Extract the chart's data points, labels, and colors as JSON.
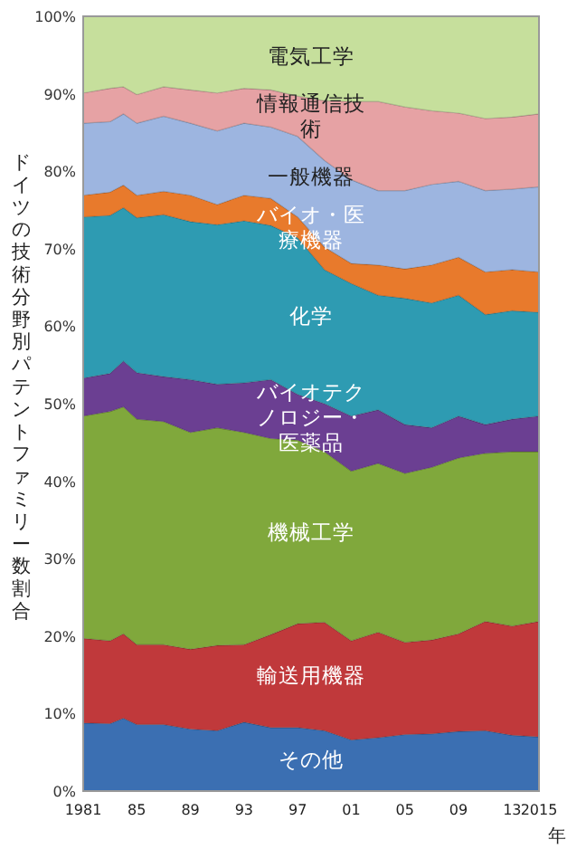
{
  "chart_data": {
    "type": "area",
    "stacked": true,
    "ylabel": "ドイツの技術分野別パテントファミリー数割合",
    "xlabel": "年",
    "x": [
      1981,
      1983,
      1984,
      1985,
      1987,
      1989,
      1991,
      1993,
      1995,
      1997,
      1999,
      2001,
      2003,
      2005,
      2007,
      2009,
      2011,
      2013,
      2015
    ],
    "xlim": [
      1981,
      2015
    ],
    "xticks": [
      1981,
      {
        "value": 1985,
        "label": "85"
      },
      {
        "value": 1989,
        "label": "89"
      },
      {
        "value": 1993,
        "label": "93"
      },
      {
        "value": 1997,
        "label": "97"
      },
      {
        "value": 2001,
        "label": "01"
      },
      {
        "value": 2005,
        "label": "05"
      },
      {
        "value": 2009,
        "label": "09"
      },
      {
        "value": 2013,
        "label": "13"
      },
      2015
    ],
    "ylim": [
      0,
      100
    ],
    "yticks": [
      {
        "value": 0,
        "label": "0%"
      },
      {
        "value": 10,
        "label": "10%"
      },
      {
        "value": 20,
        "label": "20%"
      },
      {
        "value": 30,
        "label": "30%"
      },
      {
        "value": 40,
        "label": "40%"
      },
      {
        "value": 50,
        "label": "50%"
      },
      {
        "value": 60,
        "label": "60%"
      },
      {
        "value": 70,
        "label": "70%"
      },
      {
        "value": 80,
        "label": "80%"
      },
      {
        "value": 90,
        "label": "90%"
      },
      {
        "value": 100,
        "label": "100%"
      }
    ],
    "grid": false,
    "series": [
      {
        "name": "その他",
        "color": "#3b6fb2",
        "values": [
          8.8,
          8.7,
          9.4,
          8.6,
          8.6,
          8.0,
          7.8,
          8.9,
          8.2,
          8.2,
          7.8,
          6.6,
          6.9,
          7.3,
          7.4,
          7.7,
          7.8,
          7.2,
          7.0
        ]
      },
      {
        "name": "輸送用機器",
        "color": "#c0393b",
        "values": [
          10.9,
          10.7,
          10.9,
          10.3,
          10.3,
          10.3,
          11.0,
          10.0,
          12.0,
          13.4,
          14.0,
          12.8,
          13.6,
          11.9,
          12.1,
          12.6,
          14.1,
          14.1,
          14.9
        ]
      },
      {
        "name": "機械工学",
        "color": "#80a83c",
        "values": [
          28.7,
          29.6,
          29.3,
          29.1,
          28.8,
          28.0,
          28.1,
          27.4,
          25.3,
          23.7,
          22.0,
          21.9,
          21.8,
          21.8,
          22.3,
          22.7,
          21.7,
          22.5,
          21.9
        ]
      },
      {
        "name": "バイオテクノロジー・医薬品",
        "color": "#6b3f92",
        "values": [
          4.9,
          4.9,
          5.9,
          6.0,
          5.8,
          6.8,
          5.6,
          6.4,
          7.6,
          5.9,
          6.2,
          7.1,
          6.9,
          6.3,
          5.1,
          5.4,
          3.7,
          4.2,
          4.6
        ]
      },
      {
        "name": "化学",
        "color": "#2e9bb2",
        "values": [
          20.8,
          20.4,
          19.8,
          20.0,
          20.9,
          20.4,
          20.6,
          20.9,
          19.9,
          20.2,
          17.3,
          17.1,
          14.8,
          16.3,
          16.1,
          15.6,
          14.2,
          14.0,
          13.4
        ]
      },
      {
        "name": "バイオ・医療機器",
        "color": "#e87a2c",
        "values": [
          2.8,
          3.0,
          2.9,
          2.9,
          3.0,
          3.4,
          2.6,
          3.3,
          3.5,
          2.7,
          2.9,
          2.6,
          3.9,
          3.8,
          4.9,
          4.9,
          5.5,
          5.3,
          5.2
        ]
      },
      {
        "name": "一般機器",
        "color": "#9db5e0",
        "values": [
          9.3,
          9.1,
          9.2,
          9.3,
          9.7,
          9.3,
          9.5,
          9.3,
          9.2,
          10.4,
          11.2,
          10.8,
          9.6,
          10.1,
          10.4,
          9.8,
          10.5,
          10.4,
          11.0
        ]
      },
      {
        "name": "情報通信技術",
        "color": "#e6a2a4",
        "values": [
          3.9,
          4.3,
          3.5,
          3.7,
          3.8,
          4.3,
          4.9,
          4.5,
          4.8,
          5.2,
          7.7,
          10.1,
          11.5,
          10.8,
          9.5,
          8.8,
          9.3,
          9.3,
          9.4
        ]
      },
      {
        "name": "電気工学",
        "color": "#c6df9c",
        "values": [
          9.9,
          9.3,
          9.1,
          10.1,
          9.1,
          9.5,
          9.9,
          9.3,
          9.5,
          10.3,
          10.9,
          11.0,
          11.0,
          11.7,
          12.2,
          12.5,
          13.2,
          13.0,
          12.6
        ]
      }
    ]
  }
}
